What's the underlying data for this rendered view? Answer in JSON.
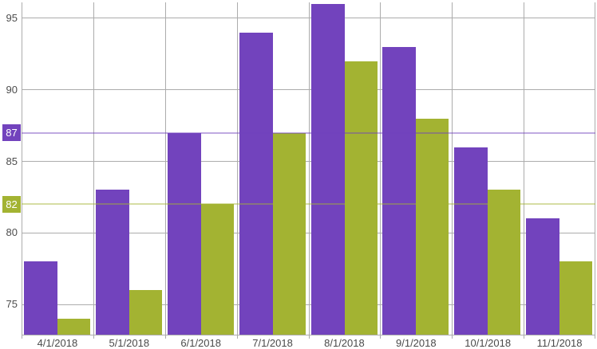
{
  "chart_data": {
    "type": "bar",
    "title": "",
    "xlabel": "",
    "ylabel": "",
    "categories": [
      "4/1/2018",
      "5/1/2018",
      "6/1/2018",
      "7/1/2018",
      "8/1/2018",
      "9/1/2018",
      "10/1/2018",
      "11/1/2018"
    ],
    "series": [
      {
        "name": "purple-series",
        "color": "#7243BD",
        "values": [
          78,
          83,
          87,
          94,
          96,
          93,
          86,
          81
        ]
      },
      {
        "name": "green-series",
        "color": "#A3B332",
        "values": [
          74,
          76,
          82,
          87,
          92,
          88,
          83,
          78
        ]
      }
    ],
    "y_ticks": [
      95,
      90,
      85,
      80,
      75
    ],
    "ylim": [
      72.9,
      96.1
    ],
    "grid": {
      "horizontal": true,
      "vertical": true,
      "color": "#ACACAC"
    },
    "legend_position": "none",
    "background": "#FFFFFF",
    "striplines": [
      {
        "value": 87,
        "label": "87",
        "badge_color": "#7243BD",
        "badge_text_color": "#FFFFFF",
        "line_color": "rgba(114,67,189,0.45)"
      },
      {
        "value": 82,
        "label": "82",
        "badge_color": "#A3B332",
        "badge_text_color": "#FFFFFF",
        "line_color": "rgba(163,179,50,0.45)"
      }
    ]
  }
}
